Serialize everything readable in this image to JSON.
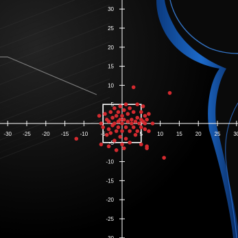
{
  "chart_data": {
    "type": "scatter",
    "title": "",
    "xlabel": "",
    "ylabel": "",
    "xlim": [
      -30,
      30
    ],
    "ylim": [
      -30,
      30
    ],
    "x_ticks": [
      -30,
      -25,
      -20,
      -15,
      -10,
      -5,
      5,
      10,
      15,
      20,
      25,
      30
    ],
    "y_ticks": [
      30,
      25,
      20,
      15,
      10,
      5,
      -5,
      -10,
      -15,
      -20,
      -25,
      -30
    ],
    "grid": false,
    "legend": "none",
    "zone": {
      "x": [
        -5,
        5
      ],
      "y": [
        -5,
        5
      ]
    },
    "series": [
      {
        "color": "#d42a2f",
        "points": [
          [
            -12,
            -4
          ],
          [
            12.5,
            8
          ],
          [
            11,
            -9
          ],
          [
            3,
            9.5
          ],
          [
            -6,
            2
          ],
          [
            -5.5,
            0
          ],
          [
            -5,
            -1
          ],
          [
            -4.5,
            2.5
          ],
          [
            -4,
            1
          ],
          [
            -4,
            -3
          ],
          [
            -3.5,
            0.5
          ],
          [
            -3.5,
            -1.5
          ],
          [
            -3,
            3
          ],
          [
            -3,
            -2.5
          ],
          [
            -2.5,
            1.5
          ],
          [
            -2.5,
            -0.5
          ],
          [
            -2,
            4
          ],
          [
            -2,
            0
          ],
          [
            -2,
            -4.5
          ],
          [
            -1.5,
            2
          ],
          [
            -1.5,
            -2
          ],
          [
            -1,
            0.5
          ],
          [
            -1,
            -1
          ],
          [
            -1,
            3
          ],
          [
            -0.5,
            1
          ],
          [
            -0.5,
            -3.5
          ],
          [
            -0.5,
            4.5
          ],
          [
            0,
            0
          ],
          [
            0,
            2
          ],
          [
            0,
            -2
          ],
          [
            0,
            -5.5
          ],
          [
            0.5,
            1
          ],
          [
            0.5,
            3.5
          ],
          [
            1,
            -1
          ],
          [
            1,
            -4
          ],
          [
            1,
            5
          ],
          [
            1.5,
            0.5
          ],
          [
            1.5,
            2.5
          ],
          [
            2,
            -2
          ],
          [
            2,
            4
          ],
          [
            2,
            -5
          ],
          [
            2.5,
            1
          ],
          [
            2.5,
            0
          ],
          [
            3,
            -1
          ],
          [
            3,
            3
          ],
          [
            3.5,
            0.5
          ],
          [
            3.5,
            -3
          ],
          [
            4,
            5
          ],
          [
            4,
            1.5
          ],
          [
            4,
            -2
          ],
          [
            4.5,
            0
          ],
          [
            5,
            1
          ],
          [
            5,
            -1
          ],
          [
            5,
            3
          ],
          [
            5,
            -5.5
          ],
          [
            5.5,
            0.5
          ],
          [
            5.5,
            4.5
          ],
          [
            6,
            2
          ],
          [
            6,
            -1.5
          ],
          [
            6,
            0
          ],
          [
            6.5,
            1
          ],
          [
            6.5,
            -6
          ],
          [
            7,
            2.5
          ],
          [
            7,
            -2
          ],
          [
            8,
            0
          ],
          [
            6.5,
            -6.5
          ],
          [
            -1.5,
            -7
          ],
          [
            -5.5,
            -5.5
          ],
          [
            -3.5,
            -6
          ],
          [
            0.5,
            -6.5
          ]
        ]
      }
    ]
  }
}
